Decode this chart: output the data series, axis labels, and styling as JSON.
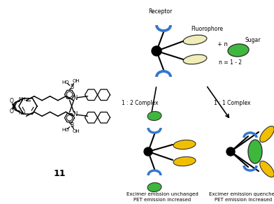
{
  "background_color": "#ffffff",
  "fluorophore_color_pale": "#f0edb8",
  "fluorophore_color_yellow": "#f0c000",
  "sugar_color_green": "#3db83d",
  "receptor_color_blue": "#3377cc",
  "label_receptor": "Receptor",
  "label_fluorophore": "Fluorophore",
  "label_sugar": "Sugar",
  "label_n": "+ n",
  "label_n2": "n = 1 - 2",
  "label_complex12": "1 : 2 Complex",
  "label_complex11": "1 : 1 Complex",
  "label_bottom_left1": "Excimer emission unchanged",
  "label_bottom_left2": "PET emission increased",
  "label_bottom_right1": "Excimer emission quenched",
  "label_bottom_right2": "PET emission increased",
  "label_11": "11"
}
